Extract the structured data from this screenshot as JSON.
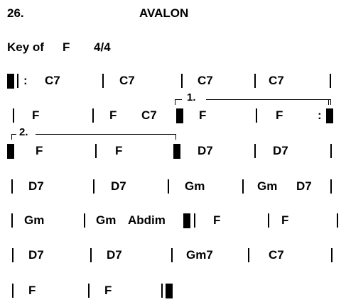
{
  "header": {
    "number": "26.",
    "title": "AVALON",
    "key_label": "Key of",
    "key": "F",
    "time_signature": "4/4"
  },
  "rows": [
    {
      "chords": [
        "C7",
        "C7",
        "C7",
        "C7"
      ]
    },
    {
      "chords": [
        "F",
        "F",
        "C7",
        "F",
        "F"
      ],
      "ending": "1."
    },
    {
      "chords": [
        "F",
        "F",
        "D7",
        "D7"
      ],
      "ending": "2."
    },
    {
      "chords": [
        "D7",
        "D7",
        "Gm",
        "Gm",
        "D7"
      ]
    },
    {
      "chords": [
        "Gm",
        "Gm",
        "Abdim",
        "F",
        "F"
      ]
    },
    {
      "chords": [
        "D7",
        "D7",
        "Gm7",
        "C7"
      ]
    },
    {
      "chords": [
        "F",
        "F"
      ]
    }
  ],
  "repeat_sign": ":"
}
